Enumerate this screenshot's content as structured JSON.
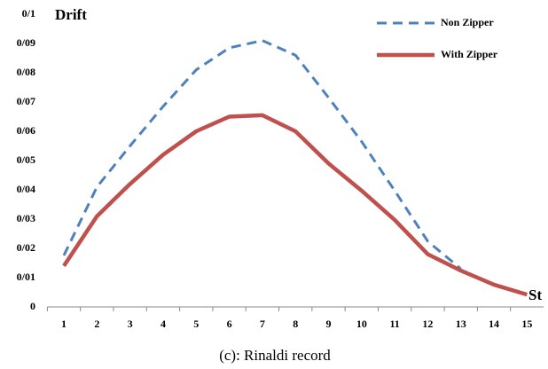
{
  "chart_data": {
    "type": "line",
    "caption": "(c): Rinaldi record",
    "y_label": "Drift",
    "x_label": "St",
    "categories": [
      "1",
      "2",
      "3",
      "4",
      "5",
      "6",
      "7",
      "8",
      "9",
      "10",
      "11",
      "12",
      "13",
      "14",
      "15"
    ],
    "series": [
      {
        "name": "Non Zipper",
        "color": "#4f81bd",
        "dashed": true,
        "values": [
          0.0176,
          0.041,
          0.055,
          0.0685,
          0.081,
          0.0885,
          0.091,
          0.086,
          0.0715,
          0.0565,
          0.0397,
          0.0224,
          0.013,
          null,
          null
        ]
      },
      {
        "name": "With Zipper",
        "color": "#c0504d",
        "dashed": false,
        "values": [
          0.014,
          0.031,
          0.042,
          0.052,
          0.06,
          0.065,
          0.0655,
          0.06,
          0.049,
          0.0397,
          0.0297,
          0.018,
          0.0124,
          0.0076,
          0.0042
        ]
      }
    ],
    "ylim": [
      0,
      0.1
    ],
    "yticks": [
      0,
      {
        "value": 0.01,
        "label": "0/01"
      },
      {
        "value": 0.02,
        "label": "0/02"
      },
      {
        "value": 0.03,
        "label": "0/03"
      },
      {
        "value": 0.04,
        "label": "0/04"
      },
      {
        "value": 0.05,
        "label": "0/05"
      },
      {
        "value": 0.06,
        "label": "0/06"
      },
      {
        "value": 0.07,
        "label": "0/07"
      },
      {
        "value": 0.08,
        "label": "0/08"
      },
      {
        "value": 0.09,
        "label": "0/09"
      },
      {
        "value": 0.1,
        "label": "0/1"
      }
    ],
    "grid": false,
    "legend": "top-right"
  }
}
